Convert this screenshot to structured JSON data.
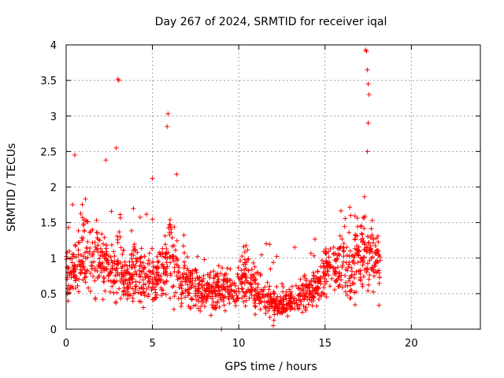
{
  "chart_data": {
    "type": "scatter",
    "title": "Day 267 of 2024, SRMTID for receiver iqal",
    "xlabel": "GPS time / hours",
    "ylabel": "SRMTID / TECUs",
    "xlim": [
      0,
      24
    ],
    "ylim": [
      0,
      4
    ],
    "xticks": [
      0,
      5,
      10,
      15,
      20
    ],
    "yticks": [
      0,
      0.5,
      1,
      1.5,
      2,
      2.5,
      3,
      3.5,
      4
    ],
    "grid": true,
    "marker": "+",
    "color": "#ff0000",
    "series": [
      {
        "name": "SRMTID",
        "profile_hours": [
          0,
          0.5,
          1,
          1.5,
          2,
          2.5,
          3,
          3.5,
          4,
          4.5,
          5,
          5.5,
          6,
          6.5,
          7,
          7.5,
          8,
          8.5,
          9,
          9.5,
          10,
          10.5,
          11,
          11.5,
          12,
          12.5,
          13,
          13.5,
          14,
          14.5,
          15,
          15.5,
          16,
          16.5,
          17,
          17.5,
          18.2
        ],
        "profile_median": [
          0.75,
          0.8,
          1.05,
          1.0,
          0.95,
          0.8,
          0.9,
          0.75,
          0.8,
          0.7,
          0.65,
          0.8,
          1.1,
          0.75,
          0.65,
          0.6,
          0.55,
          0.55,
          0.55,
          0.55,
          0.6,
          0.75,
          0.5,
          0.45,
          0.35,
          0.35,
          0.4,
          0.45,
          0.5,
          0.6,
          0.8,
          0.9,
          0.9,
          0.8,
          1.1,
          1.0,
          0.85
        ],
        "peaks": [
          {
            "x": 3.0,
            "y": 3.52
          },
          {
            "x": 3.05,
            "y": 3.5
          },
          {
            "x": 5.9,
            "y": 3.03
          },
          {
            "x": 5.85,
            "y": 2.85
          },
          {
            "x": 17.35,
            "y": 3.93
          },
          {
            "x": 17.4,
            "y": 3.91
          },
          {
            "x": 17.45,
            "y": 3.65
          },
          {
            "x": 17.5,
            "y": 3.45
          },
          {
            "x": 17.55,
            "y": 3.3
          },
          {
            "x": 17.5,
            "y": 2.9
          },
          {
            "x": 17.45,
            "y": 2.5
          },
          {
            "x": 0.5,
            "y": 2.45
          },
          {
            "x": 2.9,
            "y": 2.55
          },
          {
            "x": 2.3,
            "y": 2.38
          },
          {
            "x": 6.4,
            "y": 2.18
          },
          {
            "x": 5.0,
            "y": 2.12
          },
          {
            "x": 9.0,
            "y": 0.0
          },
          {
            "x": 12.0,
            "y": 0.05
          }
        ]
      }
    ]
  }
}
